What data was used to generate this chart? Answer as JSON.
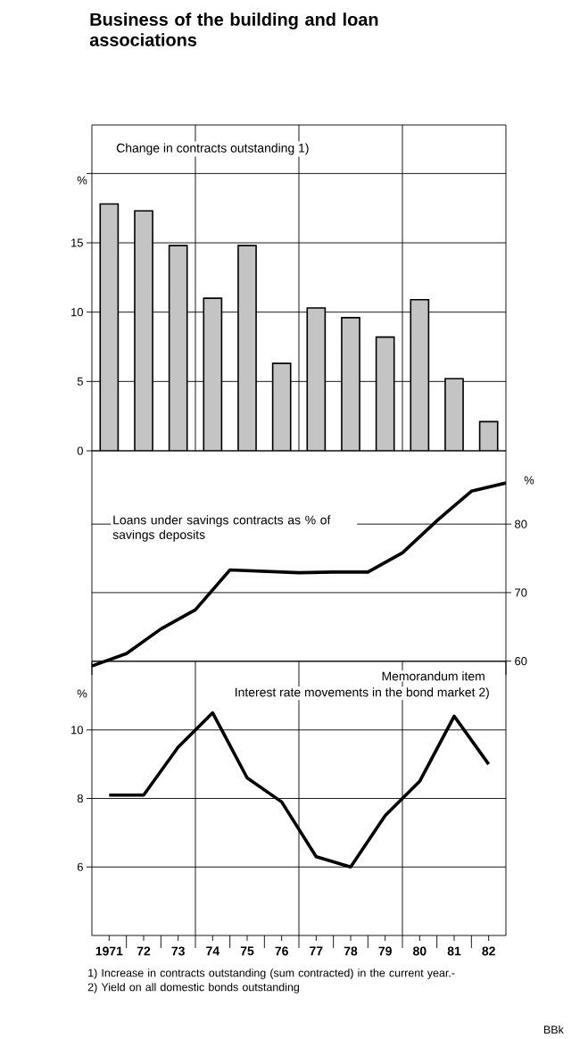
{
  "chart_data": [
    {
      "type": "bar",
      "title": "Business of the building and loan associations",
      "subtitle": "Change in contracts outstanding 1)",
      "ylabel": "%",
      "categories": [
        "1971",
        "72",
        "73",
        "74",
        "75",
        "76",
        "77",
        "78",
        "79",
        "80",
        "81",
        "82"
      ],
      "values": [
        17.8,
        17.3,
        14.8,
        11.0,
        14.8,
        6.3,
        10.3,
        9.6,
        8.2,
        10.9,
        5.2,
        2.1
      ],
      "color": "#c4c4c4",
      "ylim": [
        0,
        23.5
      ],
      "yticks": [
        0,
        5,
        10,
        15,
        {
          "value": 20,
          "label": null
        }
      ],
      "grid": true,
      "tick_labels": "y"
    },
    {
      "type": "line",
      "title": "Loans under savings contracts as % of savings deposits",
      "ylabel": "%",
      "categories": [
        null,
        null,
        null,
        null,
        null,
        null,
        null,
        null,
        null,
        null,
        null,
        null,
        null
      ],
      "values": [
        59.3,
        61.1,
        64.7,
        67.5,
        73.3,
        73.1,
        72.9,
        73.0,
        73.0,
        75.8,
        80.5,
        84.8,
        86.0
      ],
      "color": "#000000",
      "ylim": [
        58,
        90.7
      ],
      "yticks": [
        60,
        70,
        80
      ],
      "grid": true,
      "tick_labels": "y"
    },
    {
      "type": "line",
      "title": "Memorandum item",
      "subtitle": "Interest rate movements in the bond market 2)",
      "ylabel": "%",
      "categories": [
        "1971",
        "72",
        "73",
        "74",
        "75",
        "76",
        "77",
        "78",
        "79",
        "80",
        "81",
        "82"
      ],
      "values": [
        8.1,
        8.1,
        9.5,
        10.5,
        8.6,
        7.9,
        6.3,
        6.0,
        7.5,
        8.5,
        10.4,
        9.0
      ],
      "color": "#000000",
      "ylim": [
        4,
        12
      ],
      "yticks": [
        6,
        8,
        10
      ],
      "grid": true,
      "annotations": [
        "1) Increase in contracts outstanding (sum contracted) in the current year.- 2) Yield on all domestic bonds outstanding",
        "BBk"
      ]
    }
  ]
}
